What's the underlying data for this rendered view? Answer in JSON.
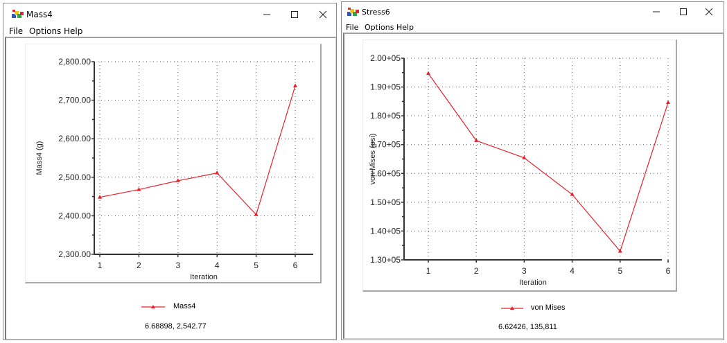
{
  "windows": [
    {
      "title": "Mass4",
      "menu": [
        "File",
        "Options",
        "Help"
      ],
      "controls": {
        "minimize": "minimize-icon",
        "maximize": "maximize-icon",
        "close": "close-icon"
      },
      "legend_label": "Mass4",
      "cursor_readout": "6.68898, 2,542.77"
    },
    {
      "title": "Stress6",
      "menu": [
        "File",
        "Options",
        "Help"
      ],
      "controls": {
        "minimize": "minimize-icon",
        "maximize": "maximize-icon",
        "close": "close-icon"
      },
      "legend_label": "von Mises",
      "cursor_readout": "6.62426, 135,811"
    }
  ],
  "colors": {
    "series": "#e8202a",
    "axis": "#333333",
    "grid": "#555555"
  },
  "chart_data": [
    {
      "type": "line",
      "title": "Mass4",
      "xlabel": "Iteration",
      "ylabel": "Mass4 (g)",
      "x": [
        1,
        2,
        3,
        4,
        5,
        6
      ],
      "series": [
        {
          "name": "Mass4",
          "values": [
            2448,
            2468,
            2491,
            2511,
            2403,
            2737
          ]
        }
      ],
      "ylim": [
        2300,
        2800
      ],
      "yticks": [
        "2,300.00",
        "2,400.00",
        "2,500.00",
        "2,600.00",
        "2,700.00",
        "2,800.00"
      ],
      "xticks": [
        "1",
        "2",
        "3",
        "4",
        "5",
        "6"
      ],
      "grid": true,
      "legend_position": "bottom"
    },
    {
      "type": "line",
      "title": "Stress6",
      "xlabel": "Iteration",
      "ylabel": "von Mises (psi)",
      "x": [
        1,
        2,
        3,
        4,
        5,
        6
      ],
      "series": [
        {
          "name": "von Mises",
          "values": [
            194700,
            171400,
            165400,
            152700,
            133000,
            184600
          ]
        }
      ],
      "ylim": [
        130000,
        200000
      ],
      "yticks": [
        "1.30+05",
        "1.40+05",
        "1.50+05",
        "1.60+05",
        "1.70+05",
        "1.80+05",
        "1.90+05",
        "2.00+05"
      ],
      "xticks": [
        "1",
        "2",
        "3",
        "4",
        "5",
        "6"
      ],
      "grid": true,
      "legend_position": "bottom"
    }
  ]
}
